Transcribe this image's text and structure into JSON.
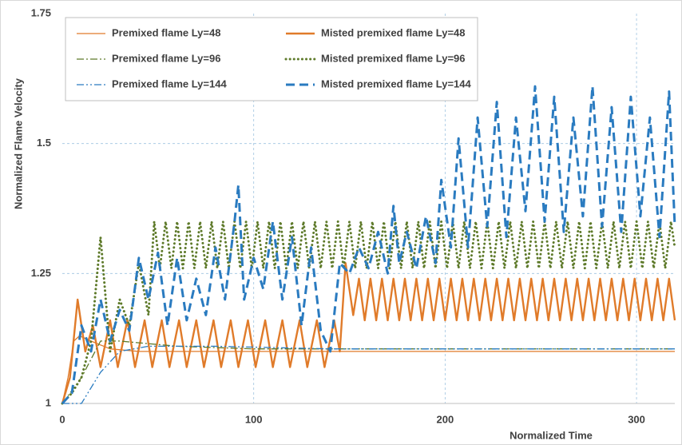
{
  "chart_data": {
    "type": "line",
    "x_label": "Normalized Time",
    "y_label": "Normalized Flame Velocity",
    "xlim": [
      0,
      320
    ],
    "ylim": [
      1,
      1.75
    ],
    "xticks": [
      0,
      100,
      200,
      300
    ],
    "yticks": [
      1,
      1.25,
      1.5,
      1.75
    ],
    "grid": true,
    "legend": "upper left",
    "series": [
      {
        "name": "Premixed flame Ly=48",
        "color": "#e07b2a",
        "line_style": "solid",
        "line_width": 1.3,
        "x": [
          0,
          3,
          6,
          9,
          15,
          25,
          40,
          320
        ],
        "values": [
          1.0,
          1.05,
          1.12,
          1.13,
          1.12,
          1.105,
          1.1,
          1.1
        ]
      },
      {
        "name": "Misted premixed flame Ly=48",
        "color": "#e07b2a",
        "line_style": "solid",
        "line_width": 2.4,
        "x": [
          0,
          4,
          8,
          12,
          16,
          20,
          25,
          29,
          34,
          38,
          43,
          47,
          52,
          56,
          61,
          65,
          70,
          74,
          79,
          83,
          88,
          92,
          97,
          101,
          106,
          110,
          115,
          119,
          124,
          128,
          133,
          137,
          142,
          145,
          148,
          152,
          155,
          158,
          161,
          164,
          167,
          170,
          173,
          176,
          179,
          182,
          185,
          188,
          191,
          194,
          197,
          200,
          203,
          206,
          209,
          212,
          215,
          218,
          221,
          224,
          227,
          230,
          233,
          236,
          239,
          242,
          245,
          248,
          251,
          254,
          257,
          260,
          263,
          266,
          269,
          272,
          275,
          278,
          281,
          284,
          287,
          290,
          293,
          296,
          299,
          302,
          305,
          308,
          311,
          314,
          317,
          320
        ],
        "values": [
          1.0,
          1.05,
          1.2,
          1.1,
          1.15,
          1.07,
          1.16,
          1.07,
          1.16,
          1.07,
          1.16,
          1.07,
          1.16,
          1.07,
          1.16,
          1.07,
          1.16,
          1.07,
          1.16,
          1.07,
          1.16,
          1.07,
          1.16,
          1.07,
          1.16,
          1.07,
          1.16,
          1.07,
          1.16,
          1.07,
          1.16,
          1.07,
          1.16,
          1.1,
          1.27,
          1.17,
          1.24,
          1.16,
          1.24,
          1.16,
          1.24,
          1.16,
          1.24,
          1.16,
          1.24,
          1.16,
          1.24,
          1.16,
          1.24,
          1.16,
          1.24,
          1.16,
          1.24,
          1.16,
          1.24,
          1.16,
          1.24,
          1.16,
          1.24,
          1.16,
          1.24,
          1.16,
          1.24,
          1.16,
          1.24,
          1.16,
          1.24,
          1.16,
          1.24,
          1.16,
          1.24,
          1.16,
          1.24,
          1.16,
          1.24,
          1.16,
          1.24,
          1.16,
          1.24,
          1.16,
          1.24,
          1.16,
          1.24,
          1.16,
          1.24,
          1.16,
          1.24,
          1.16,
          1.24,
          1.16,
          1.24,
          1.16
        ]
      },
      {
        "name": "Premixed flame Ly=96",
        "color": "#5e7a2a",
        "line_style": "dashdot",
        "line_width": 1.3,
        "x": [
          0,
          10,
          20,
          30,
          60,
          100,
          145,
          150,
          320
        ],
        "values": [
          1.0,
          1.05,
          1.12,
          1.12,
          1.11,
          1.105,
          1.105,
          1.105,
          1.105
        ]
      },
      {
        "name": "Misted premixed flame Ly=96",
        "color": "#5e7a2a",
        "line_style": "dotted",
        "line_width": 3,
        "x": [
          0,
          5,
          10,
          15,
          20,
          25,
          30,
          35,
          40,
          45,
          48,
          51,
          54,
          57,
          60,
          63,
          66,
          69,
          72,
          75,
          78,
          81,
          84,
          87,
          90,
          93,
          96,
          99,
          102,
          105,
          108,
          111,
          114,
          117,
          120,
          123,
          126,
          129,
          132,
          135,
          138,
          141,
          144,
          147,
          150,
          153,
          156,
          159,
          162,
          165,
          168,
          171,
          174,
          177,
          180,
          183,
          186,
          189,
          192,
          195,
          198,
          201,
          204,
          207,
          210,
          213,
          216,
          219,
          222,
          225,
          228,
          231,
          234,
          237,
          240,
          243,
          246,
          249,
          252,
          255,
          258,
          261,
          264,
          267,
          270,
          273,
          276,
          279,
          282,
          285,
          288,
          291,
          294,
          297,
          300,
          303,
          306,
          309,
          312,
          315,
          318,
          320
        ],
        "values": [
          1.0,
          1.02,
          1.05,
          1.12,
          1.32,
          1.1,
          1.2,
          1.15,
          1.27,
          1.17,
          1.35,
          1.26,
          1.35,
          1.26,
          1.35,
          1.26,
          1.35,
          1.26,
          1.35,
          1.26,
          1.35,
          1.26,
          1.35,
          1.26,
          1.35,
          1.26,
          1.35,
          1.26,
          1.35,
          1.26,
          1.35,
          1.26,
          1.35,
          1.26,
          1.35,
          1.26,
          1.35,
          1.26,
          1.35,
          1.26,
          1.35,
          1.26,
          1.35,
          1.26,
          1.35,
          1.26,
          1.35,
          1.26,
          1.35,
          1.26,
          1.35,
          1.26,
          1.35,
          1.26,
          1.35,
          1.26,
          1.35,
          1.26,
          1.35,
          1.26,
          1.35,
          1.26,
          1.35,
          1.26,
          1.35,
          1.26,
          1.35,
          1.26,
          1.35,
          1.26,
          1.35,
          1.26,
          1.35,
          1.26,
          1.35,
          1.26,
          1.35,
          1.26,
          1.35,
          1.26,
          1.35,
          1.26,
          1.35,
          1.26,
          1.35,
          1.26,
          1.35,
          1.26,
          1.35,
          1.26,
          1.35,
          1.26,
          1.35,
          1.26,
          1.35,
          1.26,
          1.35,
          1.26,
          1.35,
          1.26,
          1.35,
          1.3
        ]
      },
      {
        "name": "Premixed flame Ly=144",
        "color": "#2a7bc0",
        "line_style": "dashdotdot",
        "line_width": 1.3,
        "x": [
          0,
          10,
          20,
          30,
          45,
          80,
          140,
          320
        ],
        "values": [
          1.0,
          1.0,
          1.06,
          1.1,
          1.11,
          1.11,
          1.105,
          1.105
        ]
      },
      {
        "name": "Misted premixed flame Ly=144",
        "color": "#2a7bc0",
        "line_style": "dashed",
        "line_width": 3,
        "x": [
          0,
          5,
          10,
          15,
          20,
          25,
          30,
          35,
          40,
          45,
          50,
          55,
          60,
          65,
          70,
          75,
          80,
          85,
          90,
          92,
          95,
          100,
          105,
          110,
          115,
          120,
          125,
          130,
          135,
          140,
          145,
          150,
          155,
          160,
          165,
          170,
          173,
          176,
          180,
          185,
          190,
          195,
          198,
          203,
          207,
          212,
          217,
          222,
          227,
          232,
          237,
          242,
          247,
          252,
          257,
          262,
          267,
          272,
          277,
          282,
          287,
          292,
          297,
          302,
          307,
          312,
          317,
          320
        ],
        "values": [
          1.0,
          1.02,
          1.15,
          1.1,
          1.2,
          1.12,
          1.18,
          1.14,
          1.28,
          1.2,
          1.29,
          1.15,
          1.28,
          1.16,
          1.24,
          1.17,
          1.3,
          1.2,
          1.35,
          1.42,
          1.2,
          1.28,
          1.22,
          1.35,
          1.2,
          1.32,
          1.15,
          1.3,
          1.14,
          1.1,
          1.27,
          1.25,
          1.3,
          1.26,
          1.33,
          1.25,
          1.38,
          1.27,
          1.33,
          1.26,
          1.36,
          1.27,
          1.43,
          1.3,
          1.51,
          1.3,
          1.55,
          1.34,
          1.58,
          1.32,
          1.55,
          1.37,
          1.61,
          1.35,
          1.59,
          1.33,
          1.55,
          1.36,
          1.61,
          1.34,
          1.57,
          1.33,
          1.59,
          1.36,
          1.55,
          1.32,
          1.6,
          1.34
        ]
      }
    ]
  }
}
